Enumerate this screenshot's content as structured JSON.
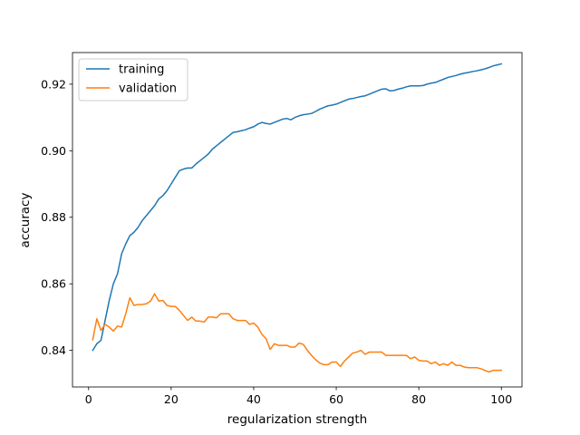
{
  "chart_data": {
    "type": "line",
    "title": "",
    "xlabel": "regularization strength",
    "ylabel": "accuracy",
    "xlim": [
      -3.9,
      105
    ],
    "ylim": [
      0.829,
      0.9295
    ],
    "x_ticks": [
      0,
      20,
      40,
      60,
      80,
      100
    ],
    "y_ticks": [
      0.84,
      0.86,
      0.88,
      0.9,
      0.92
    ],
    "x_tick_labels": [
      "0",
      "20",
      "40",
      "60",
      "80",
      "100"
    ],
    "y_tick_labels": [
      "0.84",
      "0.86",
      "0.88",
      "0.90",
      "0.92"
    ],
    "grid": false,
    "legend_position": "upper left",
    "x": [
      1,
      2,
      3,
      4,
      5,
      6,
      7,
      8,
      9,
      10,
      11,
      12,
      13,
      14,
      15,
      16,
      17,
      18,
      19,
      20,
      21,
      22,
      23,
      24,
      25,
      26,
      27,
      28,
      29,
      30,
      31,
      32,
      33,
      34,
      35,
      36,
      37,
      38,
      39,
      40,
      41,
      42,
      43,
      44,
      45,
      46,
      47,
      48,
      49,
      50,
      51,
      52,
      53,
      54,
      55,
      56,
      57,
      58,
      59,
      60,
      61,
      62,
      63,
      64,
      65,
      66,
      67,
      68,
      69,
      70,
      71,
      72,
      73,
      74,
      75,
      76,
      77,
      78,
      79,
      80,
      81,
      82,
      83,
      84,
      85,
      86,
      87,
      88,
      89,
      90,
      91,
      92,
      93,
      94,
      95,
      96,
      97,
      98,
      99,
      100
    ],
    "series": [
      {
        "name": "training",
        "color": "#1f77b4",
        "values": [
          0.84,
          0.842,
          0.843,
          0.849,
          0.855,
          0.86,
          0.863,
          0.869,
          0.872,
          0.8745,
          0.8755,
          0.877,
          0.879,
          0.8805,
          0.882,
          0.8835,
          0.8855,
          0.8865,
          0.888,
          0.89,
          0.892,
          0.894,
          0.8945,
          0.8948,
          0.8948,
          0.896,
          0.897,
          0.898,
          0.899,
          0.9005,
          0.9015,
          0.9025,
          0.9035,
          0.9045,
          0.9055,
          0.9057,
          0.906,
          0.9063,
          0.9068,
          0.9072,
          0.908,
          0.9085,
          0.9082,
          0.908,
          0.9085,
          0.909,
          0.9095,
          0.9097,
          0.9093,
          0.91,
          0.9105,
          0.9108,
          0.911,
          0.9112,
          0.9118,
          0.9125,
          0.913,
          0.9135,
          0.9137,
          0.914,
          0.9145,
          0.915,
          0.9155,
          0.9157,
          0.916,
          0.9163,
          0.9165,
          0.917,
          0.9175,
          0.918,
          0.9185,
          0.9186,
          0.918,
          0.9181,
          0.9185,
          0.9188,
          0.9192,
          0.9195,
          0.9195,
          0.9195,
          0.9196,
          0.92,
          0.9203,
          0.9205,
          0.921,
          0.9215,
          0.922,
          0.9223,
          0.9226,
          0.923,
          0.9233,
          0.9235,
          0.9238,
          0.924,
          0.9243,
          0.9246,
          0.925,
          0.9255,
          0.9258,
          0.9261
        ]
      },
      {
        "name": "validation",
        "color": "#ff7f0e",
        "values": [
          0.8432,
          0.8495,
          0.846,
          0.8478,
          0.847,
          0.8458,
          0.8473,
          0.847,
          0.851,
          0.8558,
          0.8535,
          0.8538,
          0.8538,
          0.854,
          0.8548,
          0.857,
          0.8548,
          0.855,
          0.8535,
          0.8532,
          0.8532,
          0.852,
          0.8505,
          0.849,
          0.85,
          0.8488,
          0.8488,
          0.8485,
          0.85,
          0.85,
          0.8498,
          0.851,
          0.851,
          0.851,
          0.8495,
          0.849,
          0.849,
          0.849,
          0.8478,
          0.8482,
          0.847,
          0.8448,
          0.8435,
          0.8403,
          0.842,
          0.8415,
          0.8415,
          0.8415,
          0.841,
          0.841,
          0.8422,
          0.8418,
          0.84,
          0.8385,
          0.8372,
          0.8362,
          0.8357,
          0.8357,
          0.8365,
          0.8365,
          0.8352,
          0.8368,
          0.838,
          0.8392,
          0.8395,
          0.84,
          0.8388,
          0.8395,
          0.8395,
          0.8395,
          0.8395,
          0.8385,
          0.8385,
          0.8385,
          0.8385,
          0.8385,
          0.8385,
          0.8375,
          0.838,
          0.837,
          0.8368,
          0.8368,
          0.836,
          0.8365,
          0.8355,
          0.836,
          0.8355,
          0.8365,
          0.8355,
          0.8355,
          0.835,
          0.8348,
          0.8348,
          0.8348,
          0.8345,
          0.834,
          0.8335,
          0.834,
          0.834,
          0.834
        ]
      }
    ]
  }
}
